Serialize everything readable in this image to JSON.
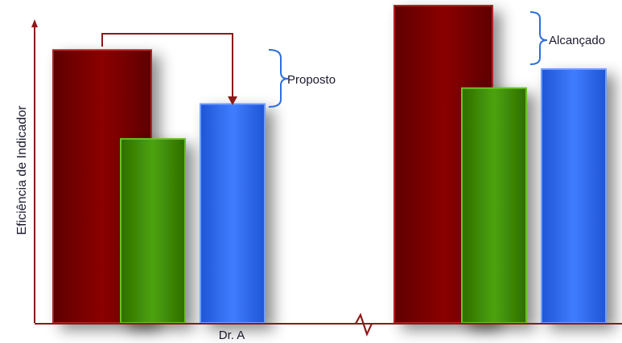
{
  "chart_data": {
    "type": "bar",
    "title": "",
    "xlabel": "",
    "ylabel": "Eficiência de Indicador",
    "ylim": [
      0,
      100
    ],
    "axis_break": true,
    "grid": false,
    "legend": "none",
    "groups": [
      {
        "label": "Dr.  A",
        "values": [
          86,
          58,
          69
        ],
        "annotation": "Proposto"
      },
      {
        "label": "",
        "values": [
          100,
          74,
          80
        ],
        "annotation": "Alcançado"
      }
    ],
    "bar_colors": [
      "#8b0000",
      "#4a9e08",
      "#3b78f5"
    ]
  }
}
